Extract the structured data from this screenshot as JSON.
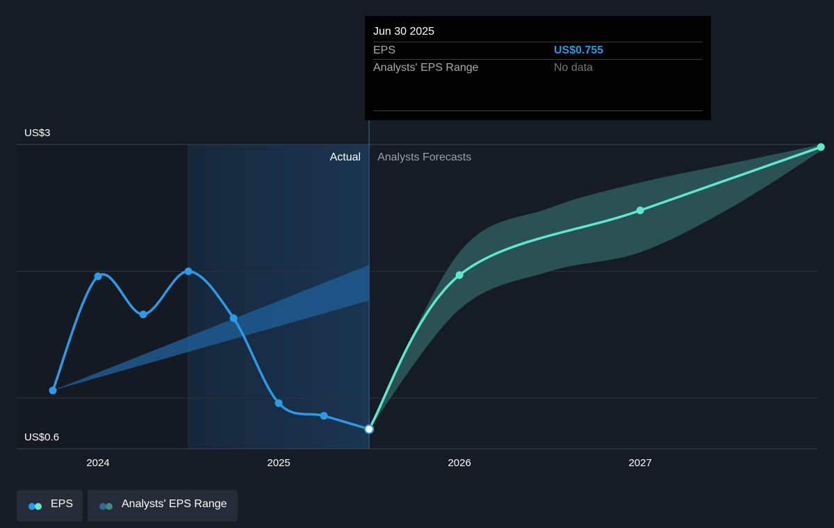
{
  "colors": {
    "background": "#161c26",
    "eps_actual": "#2d9ae8",
    "eps_forecast": "#5ee8d0",
    "forecast_band": "#2e5b5c",
    "actual_band": "#1f5a8f",
    "gridline": "#2b3340",
    "tooltip_bg": "#000000",
    "tooltip_value": "#2d9ae8"
  },
  "tooltip": {
    "date": "Jun 30 2025",
    "rows": [
      {
        "label": "EPS",
        "value": "US$0.755"
      },
      {
        "label": "Analysts' EPS Range",
        "value": "No data"
      }
    ]
  },
  "section_labels": {
    "actual": "Actual",
    "forecast": "Analysts Forecasts"
  },
  "legend": {
    "items": [
      {
        "label": "EPS",
        "icon": "eps-legend-icon"
      },
      {
        "label": "Analysts' EPS Range",
        "icon": "eps-range-legend-icon"
      }
    ]
  },
  "chart_data": {
    "type": "line",
    "y_tick_labels": [
      "US$3",
      "US$0.6"
    ],
    "ylim": [
      0.6,
      3.0
    ],
    "x_tick_labels": [
      "2024",
      "2025",
      "2026",
      "2027"
    ],
    "x_ticks": [
      2024.0,
      2025.0,
      2026.0,
      2027.0
    ],
    "xlim": [
      2023.55,
      2027.98
    ],
    "grid": true,
    "legend_position": "bottom-left",
    "series": [
      {
        "name": "EPS",
        "x": [
          2023.75,
          2024.0,
          2024.25,
          2024.5,
          2024.75,
          2025.0,
          2025.25,
          2025.5
        ],
        "y": [
          1.06,
          1.96,
          1.66,
          2.0,
          1.63,
          0.96,
          0.86,
          0.755
        ]
      },
      {
        "name": "EPS",
        "x": [
          2025.5,
          2026.0,
          2027.0,
          2028.0
        ],
        "y": [
          0.755,
          1.97,
          2.48,
          2.98
        ]
      }
    ],
    "ranges": [
      {
        "name": "Analysts' EPS Range",
        "x": [
          2025.5,
          2026.0,
          2026.5,
          2027.0,
          2027.5,
          2028.0
        ],
        "low": [
          0.755,
          1.7,
          2.0,
          2.15,
          2.5,
          2.95
        ],
        "high": [
          0.755,
          2.15,
          2.5,
          2.7,
          2.85,
          3.0
        ]
      }
    ],
    "actual_trend_band": {
      "x": [
        2023.75,
        2025.5
      ],
      "low": [
        1.06,
        1.77
      ],
      "high": [
        1.06,
        2.05
      ]
    },
    "highlight_period": [
      2024.5,
      2025.5
    ],
    "tooltip_x": 2025.5
  }
}
